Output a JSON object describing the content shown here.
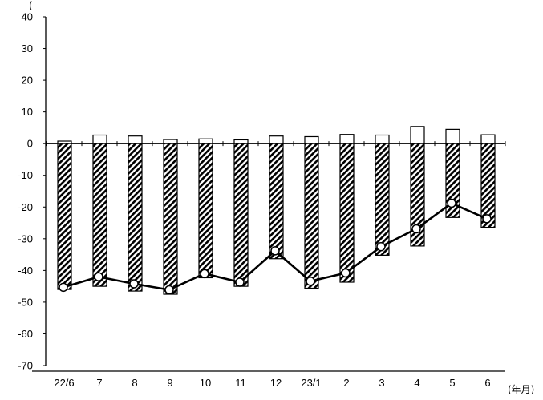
{
  "chart_data": {
    "type": "bar",
    "categories": [
      "22/6",
      "7",
      "8",
      "9",
      "10",
      "11",
      "12",
      "23/1",
      "2",
      "3",
      "4",
      "5",
      "6"
    ],
    "series": [
      {
        "kind": "bar",
        "style": "white",
        "values": [
          0.8,
          2.7,
          2.4,
          1.3,
          1.5,
          1.2,
          2.4,
          2.2,
          2.9,
          2.7,
          5.4,
          4.5,
          2.8
        ]
      },
      {
        "kind": "bar",
        "style": "hatched",
        "values": [
          -46.0,
          -45.0,
          -46.5,
          -47.5,
          -42.3,
          -45.0,
          -36.3,
          -45.6,
          -43.7,
          -35.2,
          -32.3,
          -23.3,
          -26.4
        ]
      },
      {
        "kind": "line",
        "style": "black-line-white-marker",
        "values": [
          -45.3,
          -42.0,
          -44.2,
          -46.1,
          -41.0,
          -43.7,
          -33.8,
          -43.4,
          -40.8,
          -32.5,
          -26.9,
          -18.8,
          -23.7
        ]
      }
    ],
    "ylim": [
      -70,
      40
    ],
    "yticks": [
      40,
      30,
      20,
      10,
      0,
      -10,
      -20,
      -30,
      -40,
      -50,
      -60,
      -70
    ],
    "y_unit_fragment": "(",
    "x_unit_label": "(年月)",
    "grid": false,
    "colors": {
      "axis": "#000000",
      "bar_fill": "#ffffff",
      "hatch": "#000000",
      "line": "#000000",
      "marker_fill": "#ffffff"
    }
  }
}
